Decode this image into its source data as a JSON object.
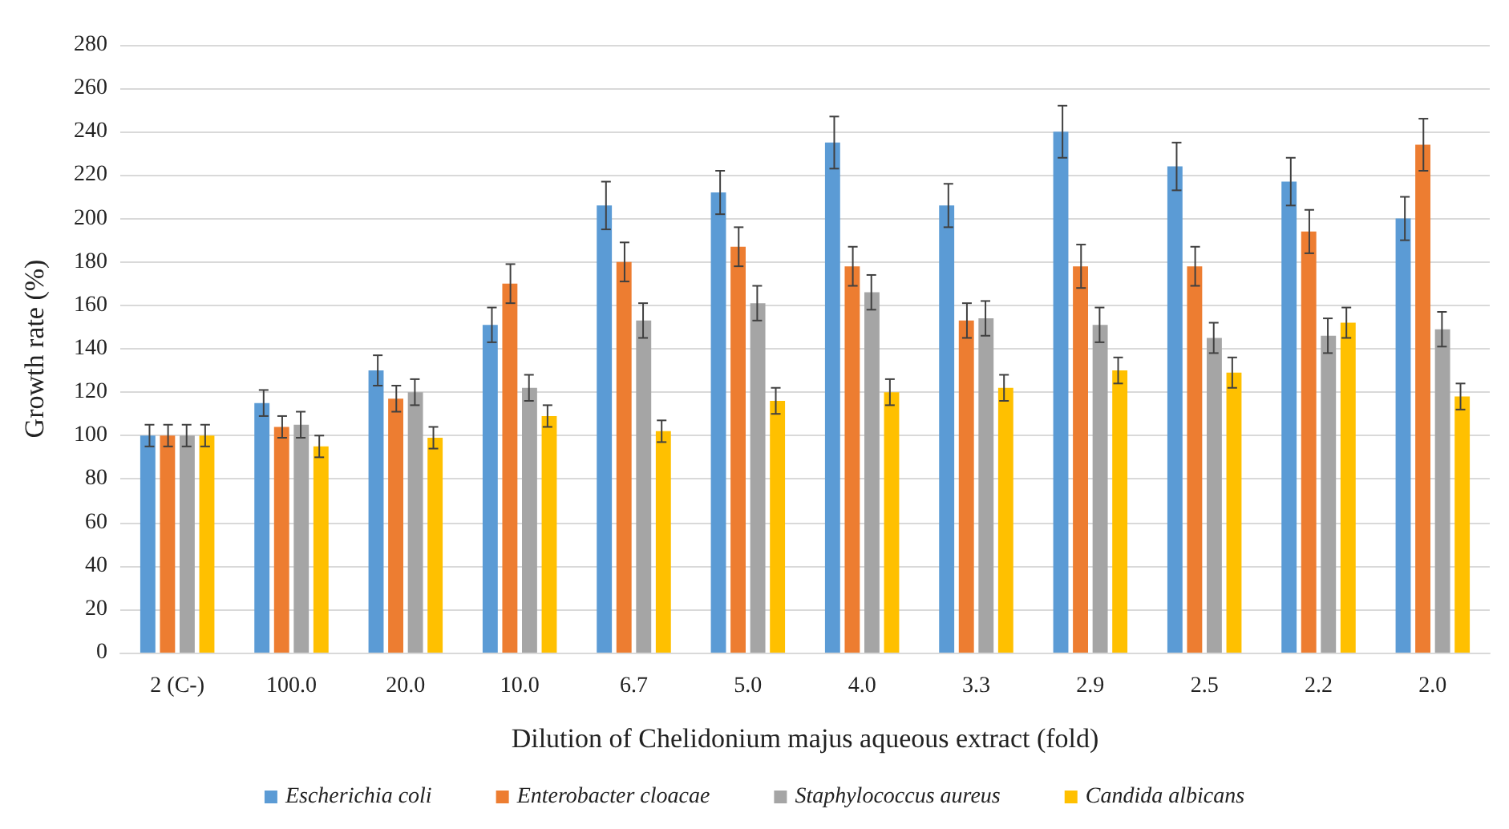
{
  "chart_data": {
    "type": "bar",
    "xlabel": "Dilution of Chelidonium majus aqueous extract (fold)",
    "ylabel": "Growth rate (%)",
    "categories": [
      "2 (C-)",
      "100.0",
      "20.0",
      "10.0",
      "6.7",
      "5.0",
      "4.0",
      "3.3",
      "2.9",
      "2.5",
      "2.2",
      "2.0"
    ],
    "series": [
      {
        "name": "Escherichia coli",
        "color": "#5b9bd5",
        "values": [
          100,
          115,
          130,
          151,
          206,
          212,
          235,
          206,
          240,
          224,
          217,
          200
        ],
        "errors": [
          5,
          6,
          7,
          8,
          11,
          10,
          12,
          10,
          12,
          11,
          11,
          10
        ]
      },
      {
        "name": "Enterobacter cloacae",
        "color": "#ed7d31",
        "values": [
          100,
          104,
          117,
          170,
          180,
          187,
          178,
          153,
          178,
          178,
          194,
          234
        ],
        "errors": [
          5,
          5,
          6,
          9,
          9,
          9,
          9,
          8,
          10,
          9,
          10,
          12
        ]
      },
      {
        "name": "Staphylococcus aureus",
        "color": "#a5a5a5",
        "values": [
          100,
          105,
          120,
          122,
          153,
          161,
          166,
          154,
          151,
          145,
          146,
          149
        ],
        "errors": [
          5,
          6,
          6,
          6,
          8,
          8,
          8,
          8,
          8,
          7,
          8,
          8
        ]
      },
      {
        "name": "Candida albicans",
        "color": "#ffc000",
        "values": [
          100,
          95,
          99,
          109,
          102,
          116,
          120,
          122,
          130,
          129,
          152,
          118
        ],
        "errors": [
          5,
          5,
          5,
          5,
          5,
          6,
          6,
          6,
          6,
          7,
          7,
          6
        ]
      }
    ],
    "ylim": [
      0,
      280
    ],
    "yticks": [
      0,
      20,
      40,
      60,
      80,
      100,
      120,
      140,
      160,
      180,
      200,
      220,
      240,
      260,
      280
    ],
    "grid": "y",
    "legend": "bottom"
  }
}
